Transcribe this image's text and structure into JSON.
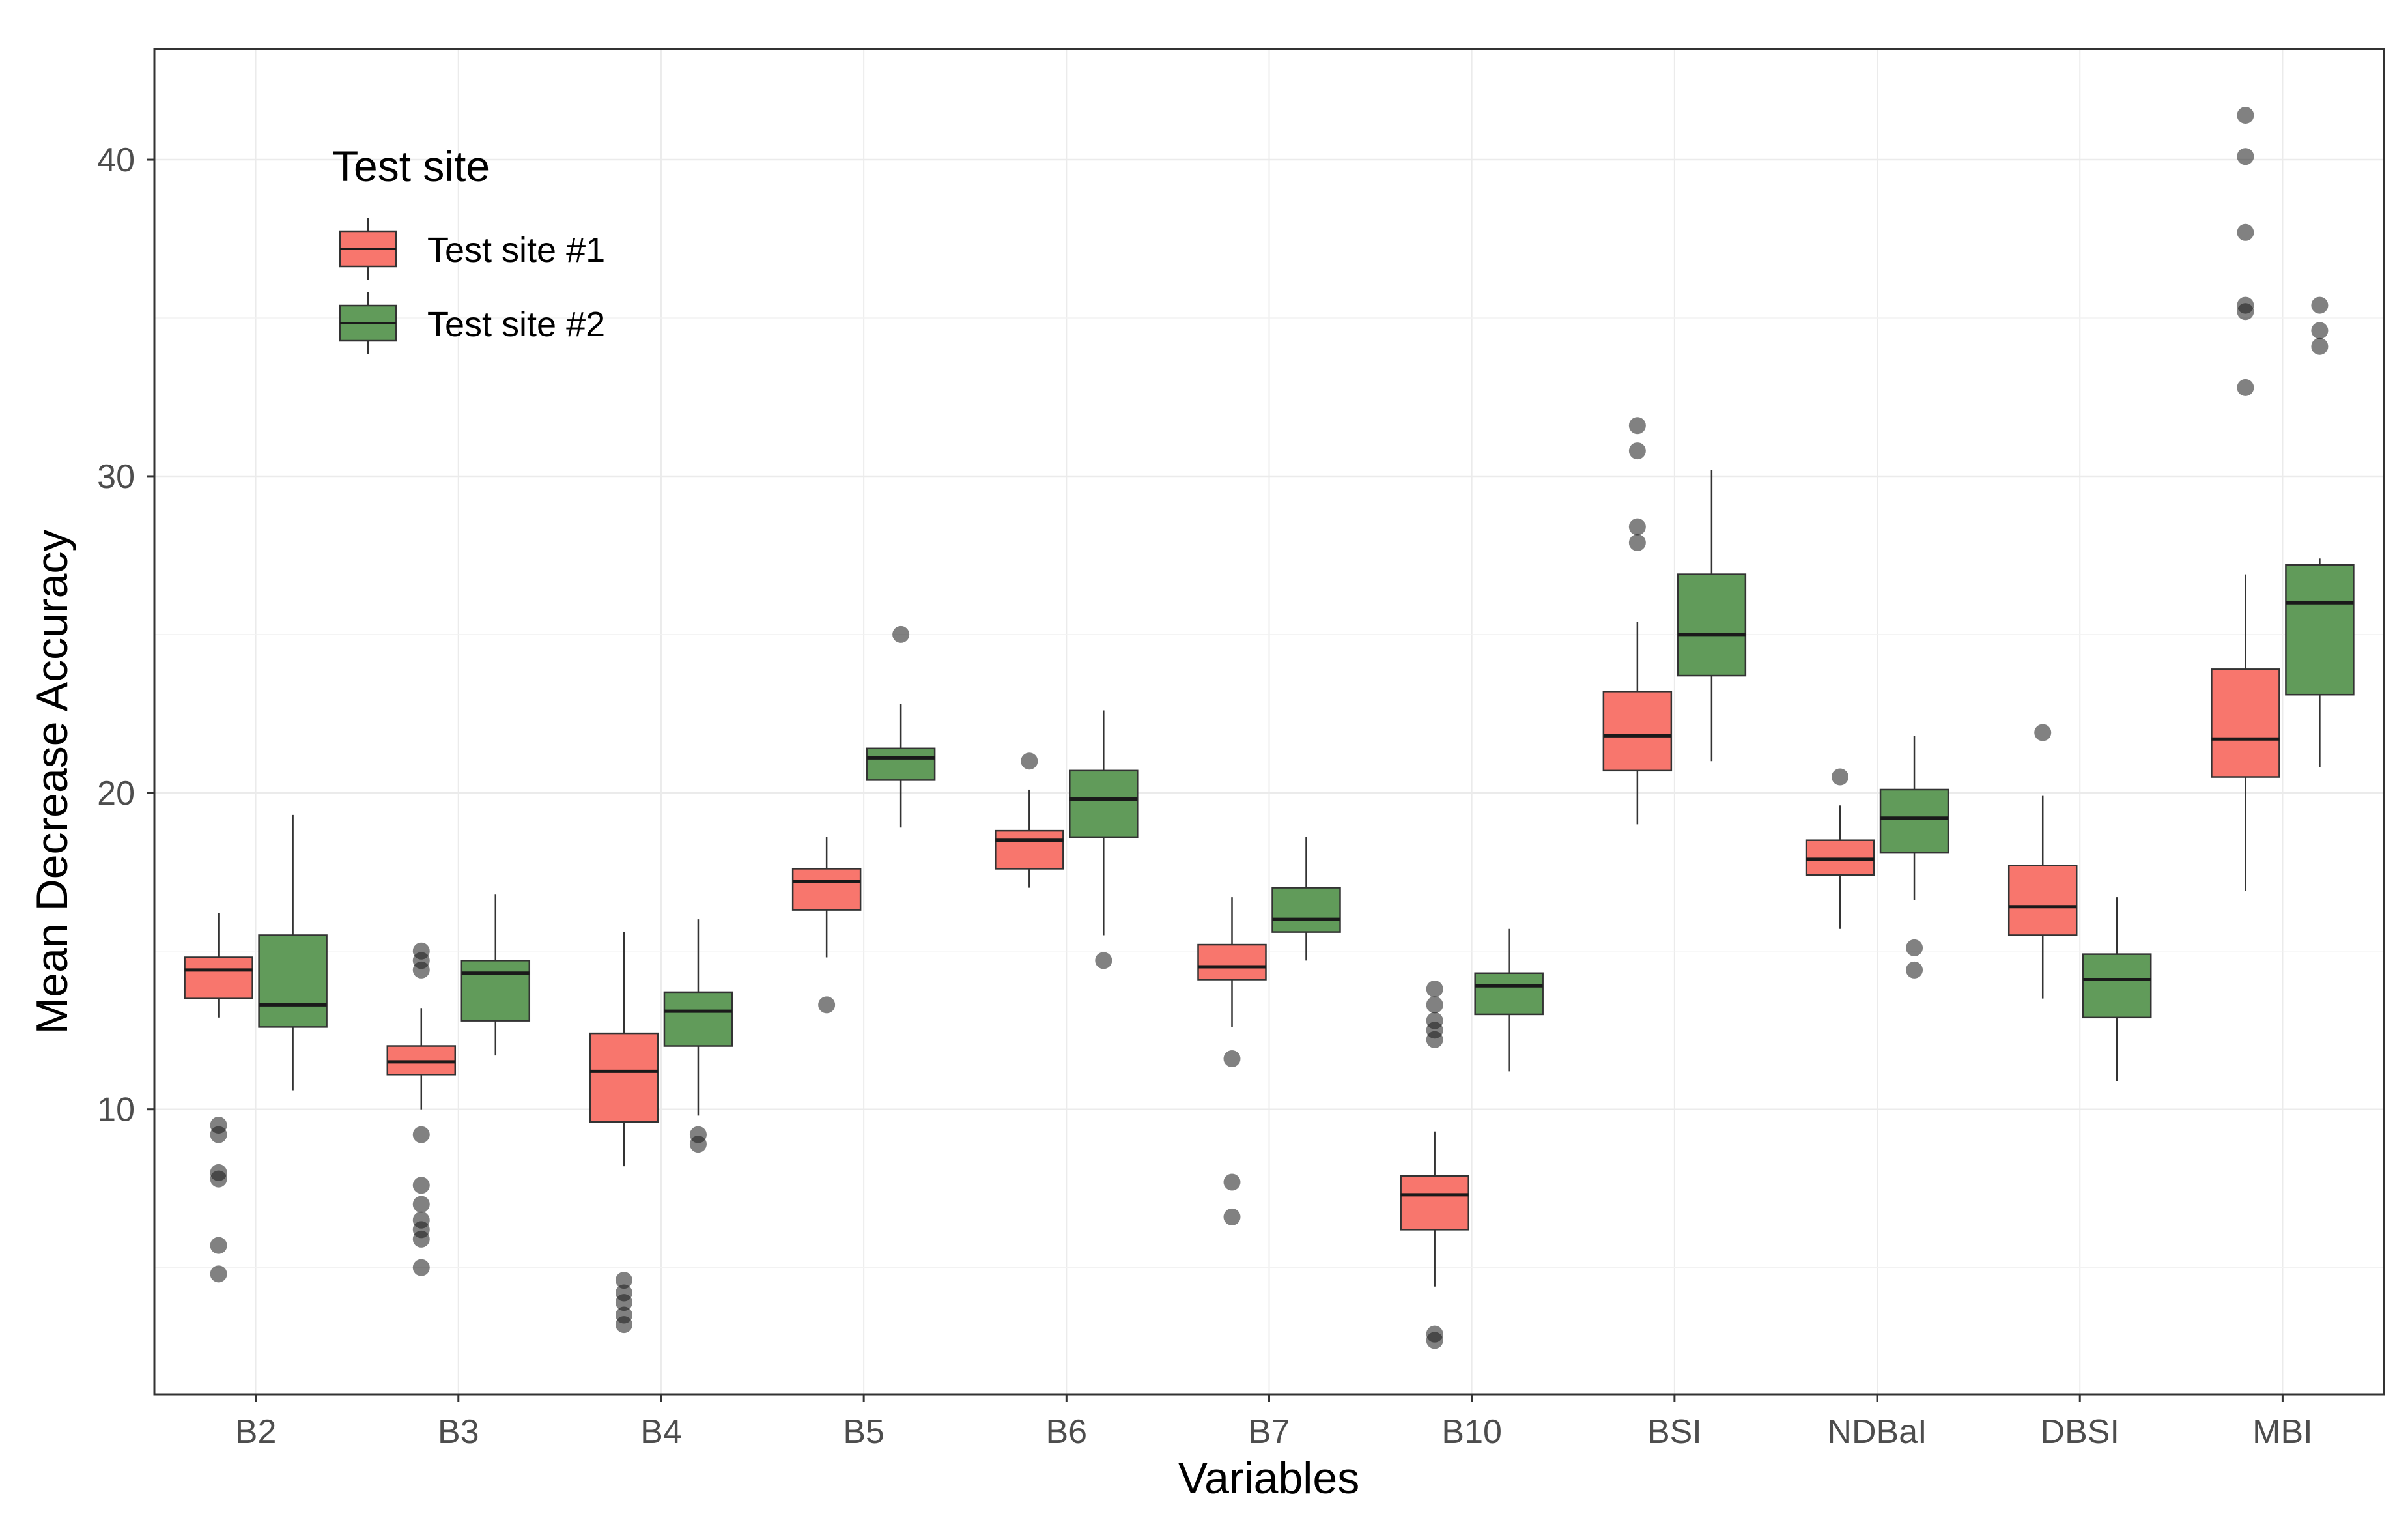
{
  "chart_data": {
    "type": "boxplot",
    "title": "",
    "xlabel": "Variables",
    "ylabel": "Mean Decrease Accuracy",
    "ylim": [
      1,
      43.5
    ],
    "yticks": [
      10,
      20,
      30,
      40
    ],
    "grid": true,
    "legend": {
      "title": "Test site",
      "position": "top-left",
      "entries": [
        {
          "label": "Test site #1",
          "color": "#f8766d"
        },
        {
          "label": "Test site #2",
          "color": "#619b5a"
        }
      ]
    },
    "categories": [
      "B2",
      "B3",
      "B4",
      "B5",
      "B6",
      "B7",
      "B10",
      "BSI",
      "NDBaI",
      "DBSI",
      "MBI"
    ],
    "series": [
      {
        "name": "Test site #1",
        "color": "#f8766d",
        "boxes": [
          {
            "whisker_low": 12.9,
            "q1": 13.5,
            "median": 14.4,
            "q3": 14.8,
            "whisker_high": 16.2,
            "outliers": [
              9.5,
              9.2,
              8.0,
              7.8,
              5.7,
              4.8
            ]
          },
          {
            "whisker_low": 10.0,
            "q1": 11.1,
            "median": 11.5,
            "q3": 12.0,
            "whisker_high": 13.2,
            "outliers": [
              15.0,
              14.7,
              14.4,
              9.2,
              7.6,
              7.0,
              6.5,
              6.2,
              5.9,
              5.0
            ]
          },
          {
            "whisker_low": 8.2,
            "q1": 9.6,
            "median": 11.2,
            "q3": 12.4,
            "whisker_high": 15.6,
            "outliers": [
              4.6,
              4.2,
              3.9,
              3.5,
              3.2
            ]
          },
          {
            "whisker_low": 14.8,
            "q1": 16.3,
            "median": 17.2,
            "q3": 17.6,
            "whisker_high": 18.6,
            "outliers": [
              13.3
            ]
          },
          {
            "whisker_low": 17.0,
            "q1": 17.6,
            "median": 18.5,
            "q3": 18.8,
            "whisker_high": 20.1,
            "outliers": [
              21.0
            ]
          },
          {
            "whisker_low": 12.6,
            "q1": 14.1,
            "median": 14.5,
            "q3": 15.2,
            "whisker_high": 16.7,
            "outliers": [
              11.6,
              7.7,
              6.6
            ]
          },
          {
            "whisker_low": 4.4,
            "q1": 6.2,
            "median": 7.3,
            "q3": 7.9,
            "whisker_high": 9.3,
            "outliers": [
              13.8,
              13.3,
              12.8,
              12.5,
              12.2,
              2.9,
              2.7
            ]
          },
          {
            "whisker_low": 19.0,
            "q1": 20.7,
            "median": 21.8,
            "q3": 23.2,
            "whisker_high": 25.4,
            "outliers": [
              31.6,
              30.8,
              28.4,
              27.9
            ]
          },
          {
            "whisker_low": 15.7,
            "q1": 17.4,
            "median": 17.9,
            "q3": 18.5,
            "whisker_high": 19.6,
            "outliers": [
              20.5
            ]
          },
          {
            "whisker_low": 13.5,
            "q1": 15.5,
            "median": 16.4,
            "q3": 17.7,
            "whisker_high": 19.9,
            "outliers": [
              21.9
            ]
          },
          {
            "whisker_low": 16.9,
            "q1": 20.5,
            "median": 21.7,
            "q3": 23.9,
            "whisker_high": 26.9,
            "outliers": [
              41.4,
              40.1,
              37.7,
              35.4,
              35.2,
              32.8
            ]
          }
        ]
      },
      {
        "name": "Test site #2",
        "color": "#619b5a",
        "boxes": [
          {
            "whisker_low": 10.6,
            "q1": 12.6,
            "median": 13.3,
            "q3": 15.5,
            "whisker_high": 19.3,
            "outliers": []
          },
          {
            "whisker_low": 11.7,
            "q1": 12.8,
            "median": 14.3,
            "q3": 14.7,
            "whisker_high": 16.8,
            "outliers": []
          },
          {
            "whisker_low": 9.8,
            "q1": 12.0,
            "median": 13.1,
            "q3": 13.7,
            "whisker_high": 16.0,
            "outliers": [
              9.2,
              8.9
            ]
          },
          {
            "whisker_low": 18.9,
            "q1": 20.4,
            "median": 21.1,
            "q3": 21.4,
            "whisker_high": 22.8,
            "outliers": [
              25.0
            ]
          },
          {
            "whisker_low": 15.5,
            "q1": 18.6,
            "median": 19.8,
            "q3": 20.7,
            "whisker_high": 22.6,
            "outliers": [
              14.7
            ]
          },
          {
            "whisker_low": 14.7,
            "q1": 15.6,
            "median": 16.0,
            "q3": 17.0,
            "whisker_high": 18.6,
            "outliers": []
          },
          {
            "whisker_low": 11.2,
            "q1": 13.0,
            "median": 13.9,
            "q3": 14.3,
            "whisker_high": 15.7,
            "outliers": []
          },
          {
            "whisker_low": 21.0,
            "q1": 23.7,
            "median": 25.0,
            "q3": 26.9,
            "whisker_high": 30.2,
            "outliers": []
          },
          {
            "whisker_low": 16.6,
            "q1": 18.1,
            "median": 19.2,
            "q3": 20.1,
            "whisker_high": 21.8,
            "outliers": [
              15.1,
              14.4
            ]
          },
          {
            "whisker_low": 10.9,
            "q1": 12.9,
            "median": 14.1,
            "q3": 14.9,
            "whisker_high": 16.7,
            "outliers": []
          },
          {
            "whisker_low": 20.8,
            "q1": 23.1,
            "median": 26.0,
            "q3": 27.2,
            "whisker_high": 27.4,
            "outliers": [
              35.4,
              34.6,
              34.1
            ]
          }
        ]
      }
    ]
  }
}
